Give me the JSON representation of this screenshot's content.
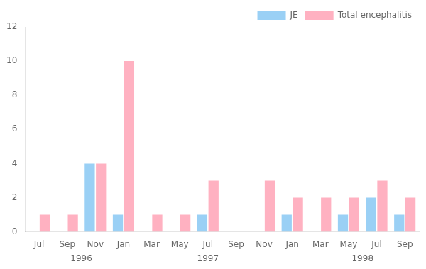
{
  "chart_data": {
    "type": "bar",
    "categories": [
      "Jul",
      "Sep",
      "Nov",
      "Jan",
      "Mar",
      "May",
      "Jul",
      "Sep",
      "Nov",
      "Jan",
      "Mar",
      "May",
      "Jul",
      "Sep"
    ],
    "series": [
      {
        "name": "JE",
        "values": [
          0,
          0,
          4,
          1,
          0,
          0,
          1,
          0,
          0,
          1,
          0,
          1,
          2,
          1
        ]
      },
      {
        "name": "Total encephalitis",
        "values": [
          1,
          1,
          4,
          10,
          1,
          1,
          3,
          0,
          3,
          2,
          2,
          2,
          3,
          2
        ]
      }
    ],
    "ylim": [
      0,
      12
    ],
    "yticks": [
      0,
      2,
      4,
      6,
      8,
      10,
      12
    ],
    "grid": false,
    "legend": "upper right",
    "annotations": [
      {
        "text": "1996",
        "x": 1.5
      },
      {
        "text": "1997",
        "x": 6.0
      },
      {
        "text": "1998",
        "x": 11.5
      }
    ]
  }
}
